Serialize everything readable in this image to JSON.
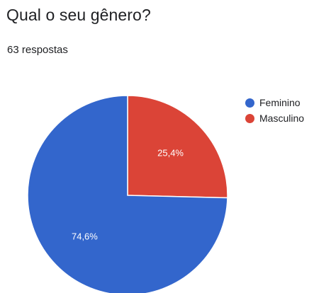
{
  "question": {
    "title": "Qual o seu gênero?",
    "responses": "63 respostas"
  },
  "chart_data": {
    "type": "pie",
    "title": "Qual o seu gênero?",
    "legend_position": "right",
    "slices": [
      {
        "label": "Masculino",
        "value": 25.4,
        "value_label": "25,4%",
        "color": "#db4437"
      },
      {
        "label": "Feminino",
        "value": 74.6,
        "value_label": "74,6%",
        "color": "#3366cc"
      }
    ],
    "legend": [
      {
        "label": "Feminino",
        "color": "#3366cc"
      },
      {
        "label": "Masculino",
        "color": "#db4437"
      }
    ]
  }
}
